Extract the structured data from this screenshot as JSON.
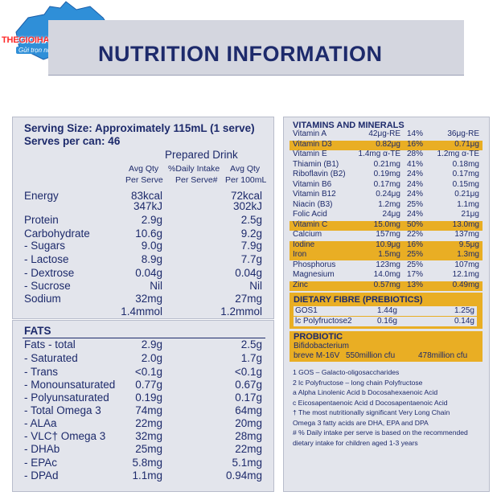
{
  "logo": {
    "text": "THEGIOIHANGUC.COM.VN",
    "slogan": "Gửi trọn niềm tin"
  },
  "title": "NUTRITION INFORMATION",
  "serving": {
    "size": "Serving Size: Approximately 115mL (1 serve)",
    "per_can": "Serves per can: 46",
    "prepared": "Prepared Drink",
    "col1a": "Avg Qty",
    "col1b": "Per Serve",
    "col2a": "%Daily Intake",
    "col2b": "Per Serve#",
    "col3a": "Avg Qty",
    "col3b": "Per 100mL"
  },
  "nutrients": [
    {
      "label": "Energy",
      "serve": "83kcal",
      "per100": "72kcal"
    },
    {
      "label": "",
      "serve": "347kJ",
      "per100": "302kJ"
    },
    {
      "label": "Protein",
      "serve": "2.9g",
      "per100": "2.5g"
    },
    {
      "label": "Carbohydrate",
      "serve": "10.6g",
      "per100": "9.2g"
    },
    {
      "label": "- Sugars",
      "serve": "9.0g",
      "per100": "7.9g"
    },
    {
      "label": " - Lactose",
      "serve": "8.9g",
      "per100": "7.7g"
    },
    {
      "label": " - Dextrose",
      "serve": "0.04g",
      "per100": "0.04g"
    },
    {
      "label": " - Sucrose",
      "serve": "Nil",
      "per100": "Nil"
    },
    {
      "label": "Sodium",
      "serve": "32mg",
      "per100": "27mg"
    },
    {
      "label": "",
      "serve": "1.4mmol",
      "per100": "1.2mmol"
    }
  ],
  "fats": {
    "heading": "FATS",
    "rows": [
      {
        "label": "Fats - total",
        "serve": "2.9g",
        "per100": "2.5g"
      },
      {
        "label": "- Saturated",
        "serve": "2.0g",
        "per100": "1.7g"
      },
      {
        "label": "- Trans",
        "serve": "<0.1g",
        "per100": "<0.1g"
      },
      {
        "label": "- Monounsaturated",
        "serve": "0.77g",
        "per100": "0.67g"
      },
      {
        "label": "- Polyunsaturated",
        "serve": "0.19g",
        "per100": "0.17g"
      },
      {
        "label": " - Total Omega 3",
        "serve": "74mg",
        "per100": "64mg"
      },
      {
        "label": "  - ALAa",
        "serve": "22mg",
        "per100": "20mg"
      },
      {
        "label": "  - VLC† Omega 3",
        "serve": "32mg",
        "per100": "28mg"
      },
      {
        "label": "   - DHAb",
        "serve": "25mg",
        "per100": "22mg"
      },
      {
        "label": "   - EPAc",
        "serve": "5.8mg",
        "per100": "5.1mg"
      },
      {
        "label": "   - DPAd",
        "serve": "1.1mg",
        "per100": "0.94mg"
      }
    ]
  },
  "vitamins": {
    "heading": "VITAMINS AND MINERALS",
    "rows": [
      {
        "label": "Vitamin A",
        "serve": "42μg-RE",
        "pct": "14%",
        "per100": "36μg-RE",
        "hl": false
      },
      {
        "label": "Vitamin D3",
        "serve": "0.82μg",
        "pct": "16%",
        "per100": "0.71μg",
        "hl": true
      },
      {
        "label": "Vitamin E",
        "serve": "1.4mg α-TE",
        "pct": "28%",
        "per100": "1.2mg α-TE",
        "hl": false
      },
      {
        "label": "Thiamin (B1)",
        "serve": "0.21mg",
        "pct": "41%",
        "per100": "0.18mg",
        "hl": false
      },
      {
        "label": "Riboflavin (B2)",
        "serve": "0.19mg",
        "pct": "24%",
        "per100": "0.17mg",
        "hl": false
      },
      {
        "label": "Vitamin B6",
        "serve": "0.17mg",
        "pct": "24%",
        "per100": "0.15mg",
        "hl": false
      },
      {
        "label": "Vitamin B12",
        "serve": "0.24μg",
        "pct": "24%",
        "per100": "0.21μg",
        "hl": false
      },
      {
        "label": "Niacin (B3)",
        "serve": "1.2mg",
        "pct": "25%",
        "per100": "1.1mg",
        "hl": false
      },
      {
        "label": "Folic Acid",
        "serve": "24μg",
        "pct": "24%",
        "per100": "21μg",
        "hl": false
      },
      {
        "label": "Vitamin C",
        "serve": "15.0mg",
        "pct": "50%",
        "per100": "13.0mg",
        "hl": true
      },
      {
        "label": "Calcium",
        "serve": "157mg",
        "pct": "22%",
        "per100": "137mg",
        "hl": false
      },
      {
        "label": "Iodine",
        "serve": "10.9μg",
        "pct": "16%",
        "per100": "9.5μg",
        "hl": true
      },
      {
        "label": "Iron",
        "serve": "1.5mg",
        "pct": "25%",
        "per100": "1.3mg",
        "hl": true
      },
      {
        "label": "Phosphorus",
        "serve": "123mg",
        "pct": "25%",
        "per100": "107mg",
        "hl": false
      },
      {
        "label": "Magnesium",
        "serve": "14.0mg",
        "pct": "17%",
        "per100": "12.1mg",
        "hl": false
      },
      {
        "label": "Zinc",
        "serve": "0.57mg",
        "pct": "13%",
        "per100": "0.49mg",
        "hl": true
      }
    ]
  },
  "fibre": {
    "heading": "DIETARY FIBRE (PREBIOTICS)",
    "rows": [
      {
        "label": "GOS1",
        "serve": "1.44g",
        "per100": "1.25g"
      },
      {
        "label": "lc Polyfructose2",
        "serve": "0.16g",
        "per100": "0.14g"
      }
    ]
  },
  "probiotic": {
    "heading": "PROBIOTIC",
    "line1": "Bifidobacterium",
    "line2": "breve M-16V",
    "serve": "550million cfu",
    "per100": "478million cfu"
  },
  "footnotes": [
    "1 GOS – Galacto-oligosaccharides",
    "2 lc Polyfructose – long chain Polyfructose",
    "a Alpha Linolenic Acid  b Docosahexaenoic Acid",
    "c Eicosapentaenoic Acid  d Docosapentaenoic Acid",
    "† The most nutritionally significant Very Long Chain",
    "  Omega 3 fatty acids are DHA, EPA and DPA",
    "# % Daily intake per serve is based on the recommended",
    "  dietary intake for children aged 1-3 years"
  ]
}
